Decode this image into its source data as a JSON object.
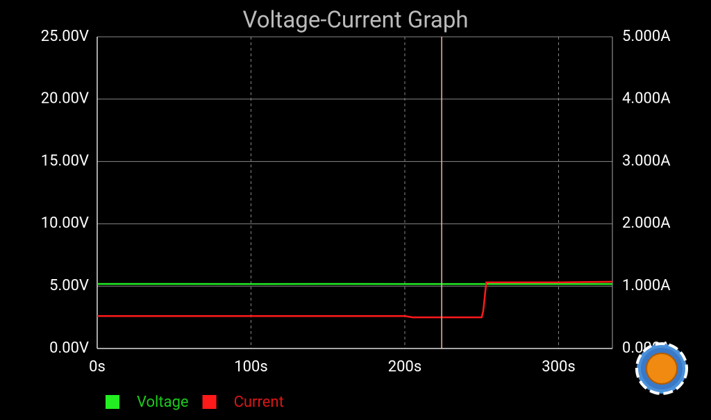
{
  "chart_data": {
    "type": "line",
    "title": "Voltage-Current Graph",
    "x": [
      0,
      50,
      100,
      145,
      200,
      205,
      250,
      251,
      253,
      300,
      335
    ],
    "xlim": [
      0,
      335
    ],
    "xticks": [
      {
        "value": 0,
        "label": "0s"
      },
      {
        "value": 100,
        "label": "100s"
      },
      {
        "value": 200,
        "label": "200s"
      },
      {
        "value": 300,
        "label": "300s"
      }
    ],
    "ylim": [
      0,
      25
    ],
    "yticks": [
      {
        "value": 0,
        "label": "0.00V"
      },
      {
        "value": 5,
        "label": "5.00V"
      },
      {
        "value": 10,
        "label": "10.00V"
      },
      {
        "value": 15,
        "label": "15.00V"
      },
      {
        "value": 20,
        "label": "20.00V"
      },
      {
        "value": 25,
        "label": "25.00V"
      }
    ],
    "y2lim": [
      0,
      5
    ],
    "y2ticks": [
      {
        "value": 0,
        "label": "0.000A"
      },
      {
        "value": 1,
        "label": "1.000A"
      },
      {
        "value": 2,
        "label": "2.000A"
      },
      {
        "value": 3,
        "label": "3.000A"
      },
      {
        "value": 4,
        "label": "4.000A"
      },
      {
        "value": 5,
        "label": "5.000A"
      }
    ],
    "grid": true,
    "cursor_x": 224,
    "series": [
      {
        "name": "Voltage",
        "color": "#22ee22",
        "values": [
          5.18,
          5.18,
          5.17,
          5.18,
          5.17,
          5.17,
          5.17,
          5.17,
          5.17,
          5.17,
          5.17
        ]
      },
      {
        "name": "Current",
        "color": "#ff1a1a",
        "axis": "y2",
        "values": [
          0.52,
          0.52,
          0.52,
          0.52,
          0.52,
          0.5,
          0.5,
          0.6,
          1.06,
          1.06,
          1.07
        ]
      }
    ]
  }
}
